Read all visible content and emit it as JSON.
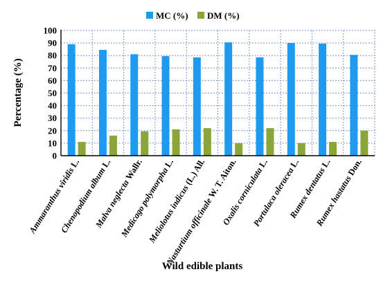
{
  "chart_data": {
    "type": "bar",
    "title": "",
    "xlabel": "Wild edible plants",
    "ylabel": "Percentage (%)",
    "ylim": [
      0,
      100
    ],
    "yticks": [
      0,
      10,
      20,
      30,
      40,
      50,
      60,
      70,
      80,
      90,
      100
    ],
    "grid": "dotted vertical and horizontal",
    "legend_position": "top",
    "categories": [
      {
        "species": "Ammaranthus viridis",
        "author": "L."
      },
      {
        "species": "Chenopodium album",
        "author": "L."
      },
      {
        "species": "Malva neglecta",
        "author": "Wallr."
      },
      {
        "species": "Medicago polymorpha",
        "author": "L."
      },
      {
        "species": "Meliolotus indicus",
        "author": "(L.) All."
      },
      {
        "species": "Nasturtium officinale",
        "author": "W. T. Aiton."
      },
      {
        "species": "Oxalis corniculata",
        "author": "L."
      },
      {
        "species": "Portulaca oleracea",
        "author": "L."
      },
      {
        "species": "Rumex dentatus",
        "author": "L."
      },
      {
        "species": "Rumex hastatus",
        "author": "Don."
      }
    ],
    "series": [
      {
        "name": "MC (%)",
        "color": "#1E9BF0",
        "values": [
          89,
          84.5,
          81,
          79.5,
          78.5,
          90.5,
          78.5,
          90,
          89.5,
          80.5
        ]
      },
      {
        "name": "DM (%)",
        "color": "#8AA63A",
        "values": [
          11,
          16,
          19.5,
          21,
          22,
          10,
          22,
          10,
          11,
          20
        ]
      }
    ]
  }
}
